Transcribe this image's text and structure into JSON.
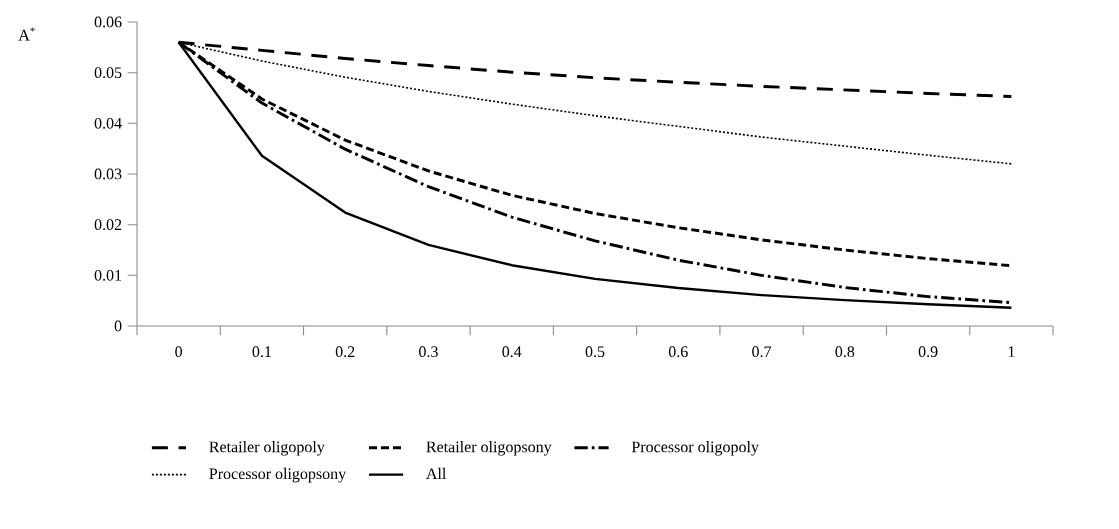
{
  "chart_data": {
    "type": "line",
    "ylabel": "A$^{*}$",
    "categories": [
      "0",
      "0.1",
      "0.2",
      "0.3",
      "0.4",
      "0.5",
      "0.6",
      "0.7",
      "0.8",
      "0.9",
      "1"
    ],
    "ylim": [
      0,
      0.06
    ],
    "yticks": [
      0,
      0.01,
      0.02,
      0.03,
      0.04,
      0.05,
      0.06
    ],
    "legend": "bottom",
    "grid": false,
    "marker": "none",
    "series": [
      {
        "name": "Retailer oligopoly",
        "color": "#000000",
        "line_style": "dashed",
        "values": [
          0.056,
          0.0544,
          0.0528,
          0.0514,
          0.0501,
          0.049,
          0.0481,
          0.0473,
          0.0466,
          0.0459,
          0.0453
        ]
      },
      {
        "name": "Retailer oligopsony",
        "color": "#000000",
        "line_style": "dashed",
        "values": [
          0.056,
          0.0448,
          0.0367,
          0.0306,
          0.0258,
          0.0222,
          0.0194,
          0.017,
          0.015,
          0.0133,
          0.0119
        ]
      },
      {
        "name": "Processor oligopoly",
        "color": "#000000",
        "line_style": "dashed",
        "values": [
          0.056,
          0.044,
          0.0349,
          0.0275,
          0.0215,
          0.0168,
          0.013,
          0.01,
          0.0076,
          0.0058,
          0.0046
        ]
      },
      {
        "name": "Processor oligopsony",
        "color": "#000000",
        "line_style": "dotted",
        "values": [
          0.056,
          0.0523,
          0.0491,
          0.0463,
          0.0438,
          0.0415,
          0.0394,
          0.0373,
          0.0355,
          0.0337,
          0.032
        ]
      },
      {
        "name": "All",
        "color": "#000000",
        "line_style": "solid",
        "values": [
          0.056,
          0.0336,
          0.0224,
          0.016,
          0.012,
          0.0093,
          0.0075,
          0.0061,
          0.0051,
          0.0043,
          0.0036
        ]
      }
    ]
  }
}
